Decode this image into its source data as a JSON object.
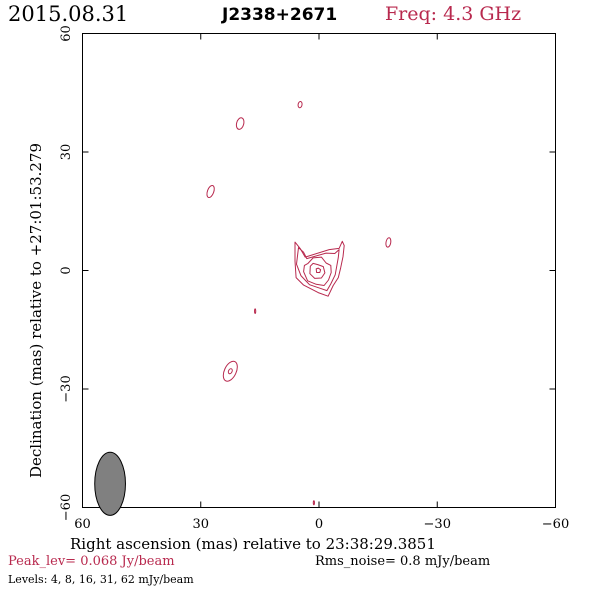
{
  "header": {
    "date": "2015.08.31",
    "source": "J2338+2671",
    "frequency": "Freq: 4.3 GHz"
  },
  "footer": {
    "peak": "Peak_lev=  0.068 Jy/beam",
    "rms": "Rms_noise=  0.8 mJy/beam",
    "levels": "Levels:   4,   8,  16,  31,  62 mJy/beam"
  },
  "colors": {
    "contour": "#b8294e",
    "beam": "#808080",
    "title_accent": "#b8294e"
  },
  "chart_data": {
    "type": "contour",
    "xlabel": "Right ascension (mas) relative to 23:38:29.3851",
    "ylabel": "Declination (mas) relative to +27:01:53.279",
    "xlim": [
      60,
      -60
    ],
    "ylim": [
      -60,
      60
    ],
    "xticks": [
      60,
      30,
      0,
      -30,
      -60
    ],
    "yticks": [
      -60,
      -30,
      0,
      30,
      60
    ],
    "xtick_labels": [
      "60",
      "30",
      "0",
      "−30",
      "−60"
    ],
    "ytick_labels": [
      "−60",
      "−30",
      "0",
      "30",
      "60"
    ],
    "levels_mJy": [
      4,
      8,
      16,
      31,
      62
    ],
    "peak_Jy_per_beam": 0.068,
    "rms_mJy_per_beam": 0.8,
    "beam": {
      "x": 53.0,
      "y": -54.0,
      "major_mas": 8.0,
      "minor_mas": 3.9,
      "pa_deg": 0
    },
    "core_contours": [
      [
        [
          3.5,
          3.4
        ],
        [
          4.8,
          5.6
        ],
        [
          6.1,
          7.2
        ],
        [
          6.1,
          2.4
        ],
        [
          5.8,
          -1.8
        ],
        [
          3.9,
          -3.7
        ],
        [
          0.2,
          -5.6
        ],
        [
          -2.3,
          -6.5
        ],
        [
          -3.6,
          -3.8
        ],
        [
          -4.9,
          -1.8
        ],
        [
          -5.5,
          0.7
        ],
        [
          -6.1,
          3.5
        ],
        [
          -6.4,
          6.3
        ],
        [
          -5.9,
          7.4
        ],
        [
          -5.1,
          5.6
        ],
        [
          -2.6,
          5.3
        ]
      ],
      [
        [
          3.1,
          3.0
        ],
        [
          3.9,
          4.6
        ],
        [
          5.2,
          5.8
        ],
        [
          5.7,
          1.6
        ],
        [
          4.6,
          -1.3
        ],
        [
          2.4,
          -3.6
        ],
        [
          -0.3,
          -4.5
        ],
        [
          -2.0,
          -5.1
        ],
        [
          -3.0,
          -3.4
        ],
        [
          -4.1,
          -1.1
        ],
        [
          -4.6,
          1.6
        ],
        [
          -4.9,
          3.3
        ],
        [
          -5.1,
          5.3
        ],
        [
          -4.0,
          4.3
        ],
        [
          -1.8,
          4.4
        ]
      ],
      [
        [
          2.8,
          1.8
        ],
        [
          3.7,
          1.3
        ],
        [
          3.9,
          -0.3
        ],
        [
          2.9,
          -2.6
        ],
        [
          0.7,
          -3.5
        ],
        [
          -1.3,
          -3.8
        ],
        [
          -2.4,
          -2.4
        ],
        [
          -3.1,
          -0.5
        ],
        [
          -3.0,
          1.3
        ],
        [
          -1.8,
          1.9
        ],
        [
          -0.6,
          3.4
        ],
        [
          1.5,
          3.2
        ]
      ],
      [
        [
          2.2,
          1.1
        ],
        [
          2.3,
          -0.8
        ],
        [
          1.1,
          -2.0
        ],
        [
          -0.6,
          -1.9
        ],
        [
          -1.5,
          -0.6
        ],
        [
          -1.1,
          1.0
        ],
        [
          0.3,
          1.5
        ],
        [
          1.5,
          1.8
        ]
      ],
      [
        [
          0.7,
          0.4
        ],
        [
          0.6,
          -0.5
        ],
        [
          -0.2,
          -0.5
        ],
        [
          -0.4,
          0.2
        ],
        [
          0.2,
          0.6
        ]
      ]
    ],
    "outer_components": [
      {
        "x": 27.5,
        "y": 20.0,
        "rx": 0.8,
        "ry": 1.6,
        "rot": 20
      },
      {
        "x": 20.0,
        "y": 37.2,
        "rx": 0.9,
        "ry": 1.5,
        "rot": 15
      },
      {
        "x": 4.8,
        "y": 42.0,
        "rx": 0.5,
        "ry": 0.8,
        "rot": 10
      },
      {
        "x": -17.6,
        "y": 7.1,
        "rx": 0.6,
        "ry": 1.2,
        "rot": 10
      },
      {
        "x": 16.2,
        "y": -10.3,
        "rx": 0.15,
        "ry": 0.6,
        "rot": 0
      },
      {
        "x": 22.5,
        "y": -25.5,
        "rx": 1.5,
        "ry": 2.7,
        "rot": 25,
        "inner": true
      },
      {
        "x": 1.3,
        "y": -58.8,
        "rx": 0.15,
        "ry": 0.5,
        "rot": 0
      }
    ]
  }
}
